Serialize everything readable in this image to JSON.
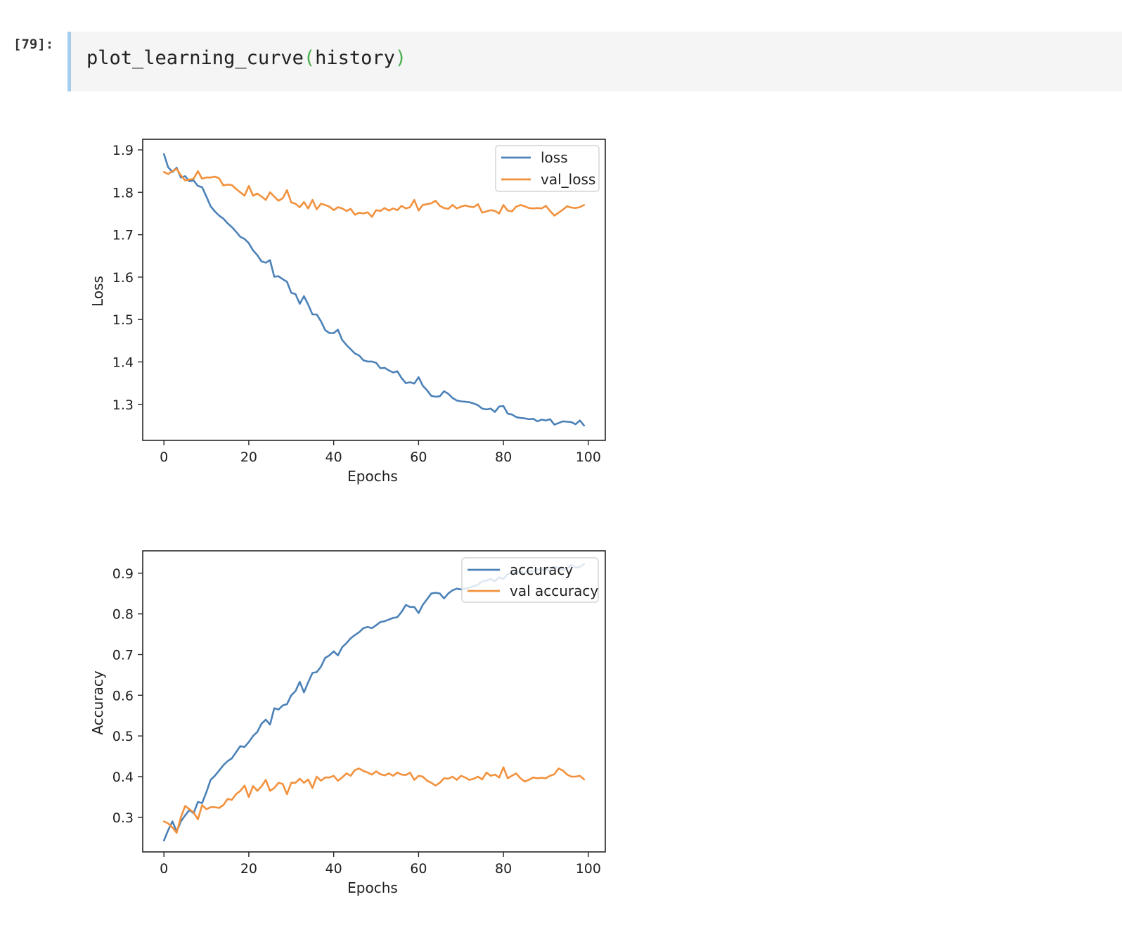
{
  "cell": {
    "prompt": "[79]:",
    "code_fn": "plot_learning_curve",
    "code_open": "(",
    "code_arg": "history",
    "code_close": ")"
  },
  "colors": {
    "train": "#4c82b8",
    "val": "#f2913d",
    "prompt_bar": "#a7cdec",
    "paren": "#4caf50"
  },
  "chart_data": [
    {
      "type": "line",
      "title": "",
      "xlabel": "Epochs",
      "ylabel": "Loss",
      "xlim": [
        -5,
        104
      ],
      "ylim": [
        1.215,
        1.925
      ],
      "xticks": [
        0,
        20,
        40,
        60,
        80,
        100
      ],
      "xtick_labels": [
        "0",
        "20",
        "40",
        "60",
        "80",
        "100"
      ],
      "yticks": [
        1.3,
        1.4,
        1.5,
        1.6,
        1.7,
        1.8,
        1.9
      ],
      "ytick_labels": [
        "1.3",
        "1.4",
        "1.5",
        "1.6",
        "1.7",
        "1.8",
        "1.9"
      ],
      "legend_position": "upper right",
      "grid": false,
      "x": [
        0,
        1,
        2,
        3,
        4,
        5,
        6,
        7,
        8,
        9,
        10,
        11,
        12,
        13,
        14,
        15,
        16,
        17,
        18,
        19,
        20,
        21,
        22,
        23,
        24,
        25,
        26,
        27,
        28,
        29,
        30,
        31,
        32,
        33,
        34,
        35,
        36,
        37,
        38,
        39,
        40,
        41,
        42,
        43,
        44,
        45,
        46,
        47,
        48,
        49,
        50,
        51,
        52,
        53,
        54,
        55,
        56,
        57,
        58,
        59,
        60,
        61,
        62,
        63,
        64,
        65,
        66,
        67,
        68,
        69,
        70,
        71,
        72,
        73,
        74,
        75,
        76,
        77,
        78,
        79,
        80,
        81,
        82,
        83,
        84,
        85,
        86,
        87,
        88,
        89,
        90,
        91,
        92,
        93,
        94,
        95,
        96,
        97,
        98,
        99
      ],
      "series": [
        {
          "name": "loss",
          "color": "#4c82b8",
          "values": [
            1.89,
            1.859,
            1.848,
            1.858,
            1.835,
            1.838,
            1.826,
            1.828,
            1.815,
            1.812,
            1.79,
            1.767,
            1.755,
            1.745,
            1.738,
            1.727,
            1.718,
            1.707,
            1.695,
            1.69,
            1.68,
            1.663,
            1.652,
            1.637,
            1.634,
            1.64,
            1.601,
            1.602,
            1.595,
            1.589,
            1.563,
            1.56,
            1.537,
            1.555,
            1.535,
            1.512,
            1.512,
            1.496,
            1.475,
            1.468,
            1.468,
            1.476,
            1.452,
            1.44,
            1.43,
            1.42,
            1.415,
            1.404,
            1.401,
            1.401,
            1.398,
            1.385,
            1.386,
            1.38,
            1.375,
            1.378,
            1.362,
            1.35,
            1.352,
            1.349,
            1.364,
            1.344,
            1.333,
            1.32,
            1.318,
            1.319,
            1.331,
            1.325,
            1.315,
            1.309,
            1.307,
            1.306,
            1.305,
            1.302,
            1.298,
            1.29,
            1.288,
            1.29,
            1.282,
            1.295,
            1.296,
            1.278,
            1.276,
            1.27,
            1.268,
            1.267,
            1.265,
            1.266,
            1.26,
            1.264,
            1.262,
            1.265,
            1.252,
            1.256,
            1.26,
            1.259,
            1.258,
            1.253,
            1.262,
            1.25
          ]
        },
        {
          "name": "val_loss",
          "color": "#f2913d",
          "values": [
            1.848,
            1.843,
            1.85,
            1.855,
            1.84,
            1.828,
            1.83,
            1.832,
            1.85,
            1.832,
            1.835,
            1.835,
            1.837,
            1.833,
            1.816,
            1.818,
            1.817,
            1.808,
            1.8,
            1.792,
            1.815,
            1.792,
            1.797,
            1.79,
            1.782,
            1.8,
            1.79,
            1.78,
            1.786,
            1.805,
            1.776,
            1.773,
            1.765,
            1.777,
            1.762,
            1.782,
            1.76,
            1.773,
            1.77,
            1.766,
            1.758,
            1.765,
            1.762,
            1.756,
            1.761,
            1.747,
            1.752,
            1.75,
            1.753,
            1.742,
            1.758,
            1.756,
            1.763,
            1.757,
            1.762,
            1.758,
            1.768,
            1.762,
            1.765,
            1.782,
            1.757,
            1.77,
            1.772,
            1.774,
            1.78,
            1.768,
            1.763,
            1.761,
            1.77,
            1.762,
            1.766,
            1.769,
            1.766,
            1.765,
            1.772,
            1.752,
            1.755,
            1.758,
            1.756,
            1.75,
            1.77,
            1.757,
            1.755,
            1.766,
            1.77,
            1.767,
            1.763,
            1.762,
            1.763,
            1.762,
            1.768,
            1.756,
            1.745,
            1.752,
            1.759,
            1.767,
            1.764,
            1.763,
            1.765,
            1.77
          ]
        }
      ]
    },
    {
      "type": "line",
      "title": "",
      "xlabel": "Epochs",
      "ylabel": "Accuracy",
      "xlim": [
        -5,
        104
      ],
      "ylim": [
        0.215,
        0.955
      ],
      "xticks": [
        0,
        20,
        40,
        60,
        80,
        100
      ],
      "xtick_labels": [
        "0",
        "20",
        "40",
        "60",
        "80",
        "100"
      ],
      "yticks": [
        0.3,
        0.4,
        0.5,
        0.6,
        0.7,
        0.8,
        0.9
      ],
      "ytick_labels": [
        "0.3",
        "0.4",
        "0.5",
        "0.6",
        "0.7",
        "0.8",
        "0.9"
      ],
      "legend_position": "upper right",
      "grid": false,
      "x": [
        0,
        1,
        2,
        3,
        4,
        5,
        6,
        7,
        8,
        9,
        10,
        11,
        12,
        13,
        14,
        15,
        16,
        17,
        18,
        19,
        20,
        21,
        22,
        23,
        24,
        25,
        26,
        27,
        28,
        29,
        30,
        31,
        32,
        33,
        34,
        35,
        36,
        37,
        38,
        39,
        40,
        41,
        42,
        43,
        44,
        45,
        46,
        47,
        48,
        49,
        50,
        51,
        52,
        53,
        54,
        55,
        56,
        57,
        58,
        59,
        60,
        61,
        62,
        63,
        64,
        65,
        66,
        67,
        68,
        69,
        70,
        71,
        72,
        73,
        74,
        75,
        76,
        77,
        78,
        79,
        80,
        81,
        82,
        83,
        84,
        85,
        86,
        87,
        88,
        89,
        90,
        91,
        92,
        93,
        94,
        95,
        96,
        97,
        98,
        99
      ],
      "series": [
        {
          "name": "accuracy",
          "color": "#4c82b8",
          "values": [
            0.243,
            0.268,
            0.29,
            0.265,
            0.29,
            0.305,
            0.318,
            0.31,
            0.338,
            0.335,
            0.362,
            0.392,
            0.402,
            0.415,
            0.428,
            0.438,
            0.445,
            0.46,
            0.475,
            0.473,
            0.485,
            0.5,
            0.51,
            0.53,
            0.54,
            0.528,
            0.568,
            0.565,
            0.575,
            0.578,
            0.6,
            0.61,
            0.633,
            0.607,
            0.632,
            0.655,
            0.657,
            0.67,
            0.692,
            0.698,
            0.708,
            0.698,
            0.718,
            0.728,
            0.74,
            0.748,
            0.755,
            0.765,
            0.768,
            0.765,
            0.772,
            0.78,
            0.782,
            0.786,
            0.79,
            0.792,
            0.805,
            0.822,
            0.817,
            0.817,
            0.802,
            0.822,
            0.836,
            0.85,
            0.852,
            0.85,
            0.838,
            0.85,
            0.858,
            0.862,
            0.86,
            0.862,
            0.865,
            0.868,
            0.872,
            0.88,
            0.882,
            0.886,
            0.88,
            0.89,
            0.886,
            0.898,
            0.9,
            0.902,
            0.904,
            0.9,
            0.906,
            0.905,
            0.91,
            0.908,
            0.91,
            0.906,
            0.915,
            0.913,
            0.908,
            0.912,
            0.92,
            0.914,
            0.915,
            0.922
          ]
        },
        {
          "name": "val accuracy",
          "color": "#f2913d",
          "values": [
            0.29,
            0.285,
            0.275,
            0.262,
            0.3,
            0.328,
            0.32,
            0.312,
            0.295,
            0.33,
            0.32,
            0.325,
            0.325,
            0.323,
            0.33,
            0.345,
            0.343,
            0.357,
            0.365,
            0.378,
            0.35,
            0.377,
            0.365,
            0.376,
            0.392,
            0.365,
            0.372,
            0.385,
            0.382,
            0.357,
            0.385,
            0.385,
            0.395,
            0.385,
            0.393,
            0.372,
            0.4,
            0.39,
            0.398,
            0.398,
            0.402,
            0.39,
            0.398,
            0.408,
            0.402,
            0.416,
            0.42,
            0.414,
            0.41,
            0.405,
            0.413,
            0.406,
            0.403,
            0.408,
            0.402,
            0.41,
            0.405,
            0.404,
            0.41,
            0.392,
            0.402,
            0.4,
            0.39,
            0.385,
            0.378,
            0.385,
            0.396,
            0.395,
            0.4,
            0.392,
            0.402,
            0.398,
            0.392,
            0.395,
            0.4,
            0.393,
            0.41,
            0.402,
            0.405,
            0.398,
            0.423,
            0.396,
            0.402,
            0.408,
            0.396,
            0.388,
            0.392,
            0.398,
            0.396,
            0.397,
            0.396,
            0.402,
            0.406,
            0.42,
            0.415,
            0.405,
            0.4,
            0.4,
            0.402,
            0.393
          ]
        }
      ]
    }
  ]
}
